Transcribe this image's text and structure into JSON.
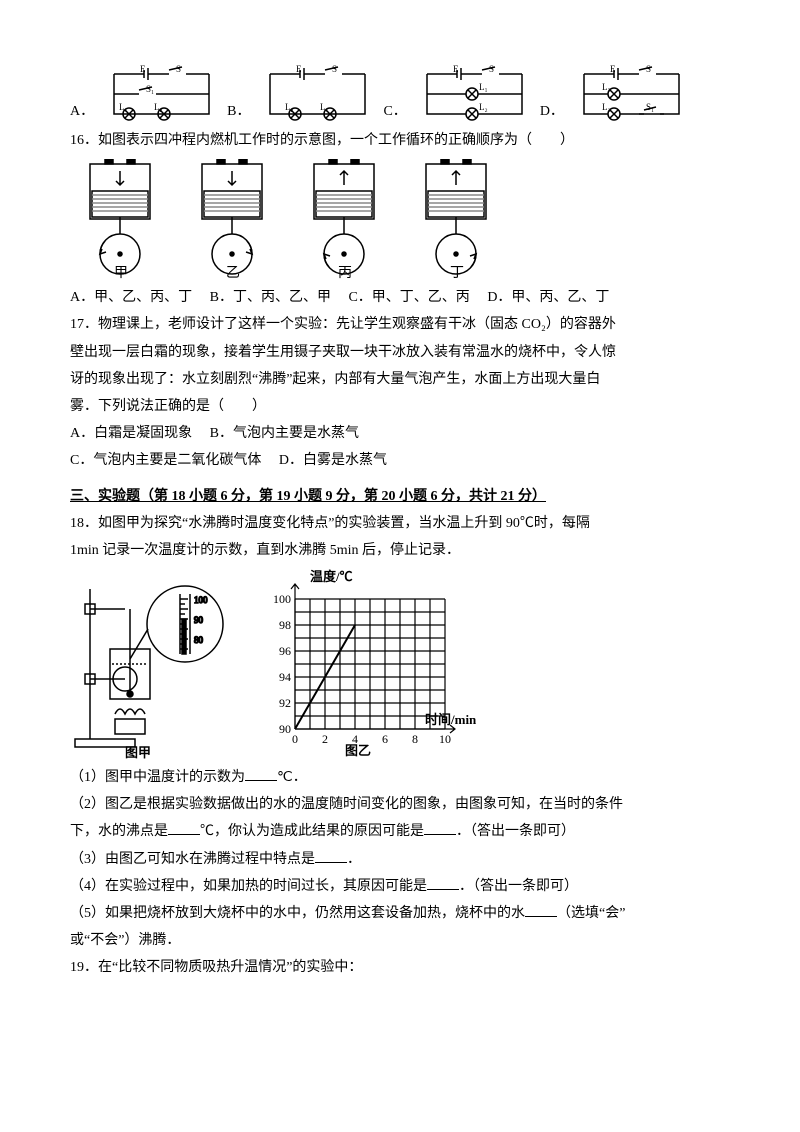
{
  "q15": {
    "options": [
      "A．",
      "B．",
      "C．",
      "D．"
    ]
  },
  "q16": {
    "stem": "16．如图表示四冲程内燃机工作时的示意图，一个工作循环的正确顺序为（　　）",
    "labels": [
      "甲",
      "乙",
      "丙",
      "丁"
    ],
    "optA": "A．甲、乙、丙、丁",
    "optB": "B．丁、丙、乙、甲",
    "optC": "C．甲、丁、乙、丙",
    "optD": "D．甲、丙、乙、丁"
  },
  "q17": {
    "l1": "17．物理课上，老师设计了这样一个实验：先让学生观察盛有干冰（固态 CO₂）的容器外",
    "l2": "壁出现一层白霜的现象，接着学生用镊子夹取一块干冰放入装有常温水的烧杯中，令人惊",
    "l3": "讶的现象出现了：水立刻剧烈“沸腾”起来，内部有大量气泡产生，水面上方出现大量白",
    "l4": "雾．下列说法正确的是（　　）",
    "optA": "A．白霜是凝固现象",
    "optB": "B．气泡内主要是水蒸气",
    "optC": "C．气泡内主要是二氧化碳气体",
    "optD": "D．白雾是水蒸气"
  },
  "section3": "三、实验题（第 18 小题 6 分，第 19 小题 9 分，第 20 小题 6 分，共计 21 分）",
  "q18": {
    "l1": "18．如图甲为探究“水沸腾时温度变化特点”的实验装置，当水温上升到 90℃时，每隔",
    "l2": "1min 记录一次温度计的示数，直到水沸腾 5min 后，停止记录．",
    "fig1_label": "图甲",
    "fig2_label": "图乙",
    "chart": {
      "y_title": "温度/℃",
      "x_title": "时间/min",
      "y_ticks": [
        "90",
        "92",
        "94",
        "96",
        "98",
        "100"
      ],
      "x_ticks": [
        "0",
        "2",
        "4",
        "6",
        "8",
        "10"
      ],
      "points": [
        [
          0,
          90
        ],
        [
          1,
          92
        ],
        [
          2,
          94
        ],
        [
          3,
          96
        ],
        [
          4,
          98
        ]
      ],
      "grid_color": "#000",
      "bg": "#fff"
    },
    "p1a": "（1）图甲中温度计的示数为",
    "p1b": "℃．",
    "p2a": "（2）图乙是根据实验数据做出的水的温度随时间变化的图象，由图象可知，在当时的条件",
    "p2b": "下，水的沸点是",
    "p2c": "℃，你认为造成此结果的原因可能是",
    "p2d": "．（答出一条即可）",
    "p3a": "（3）由图乙可知水在沸腾过程中特点是",
    "p3b": "．",
    "p4a": "（4）在实验过程中，如果加热的时间过长，其原因可能是",
    "p4b": "．（答出一条即可）",
    "p5a": "（5）如果把烧杯放到大烧杯中的水中，仍然用这套设备加热，烧杯中的水",
    "p5b": "（选填“会”",
    "p5c": "或“不会”）沸腾．"
  },
  "q19": "19．在“比较不同物质吸热升温情况”的实验中："
}
